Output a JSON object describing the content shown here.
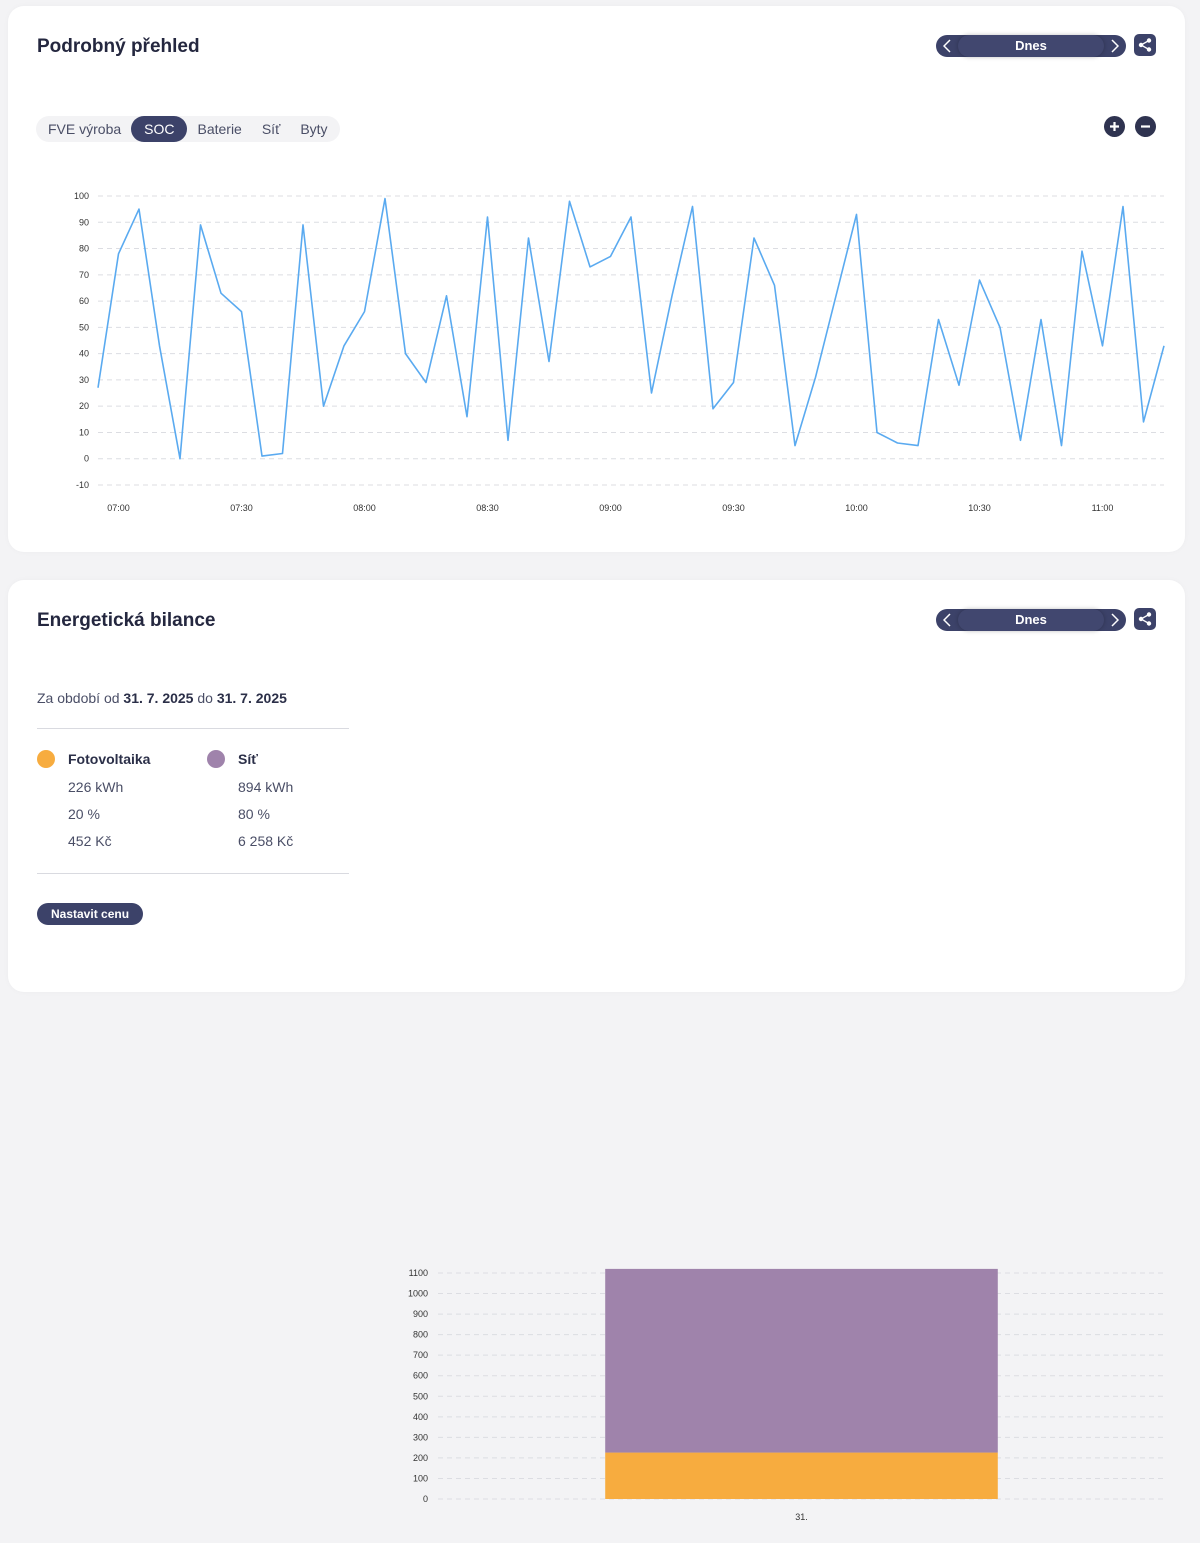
{
  "detail": {
    "title": "Podrobný přehled",
    "date_label": "Dnes",
    "tabs": [
      {
        "label": "FVE výroba",
        "active": false
      },
      {
        "label": "SOC",
        "active": true
      },
      {
        "label": "Baterie",
        "active": false
      },
      {
        "label": "Síť",
        "active": false
      },
      {
        "label": "Byty",
        "active": false
      }
    ],
    "zoom_in_icon": "plus-circle-icon",
    "zoom_out_icon": "minus-circle-icon",
    "share_icon": "share-icon"
  },
  "balance": {
    "title": "Energetická bilance",
    "date_label": "Dnes",
    "period_prefix": "Za období od",
    "period_from": "31. 7. 2025",
    "period_mid": "do",
    "period_to": "31. 7. 2025",
    "legend": [
      {
        "name": "Fotovoltaika",
        "color": "#f7ac3f",
        "energy": "226 kWh",
        "share": "20 %",
        "cost": "452 Kč"
      },
      {
        "name": "Síť",
        "color": "#9f83ab",
        "energy": "894 kWh",
        "share": "80 %",
        "cost": "6 258 Kč"
      }
    ],
    "set_price_label": "Nastavit cenu"
  },
  "colors": {
    "accent": "#3c4269",
    "line": "#5aaaf0",
    "pv": "#f7ac3f",
    "grid": "#9f83ab"
  },
  "chart_data": [
    {
      "type": "line",
      "ylim": [
        -10,
        100
      ],
      "yticks": [
        -10,
        0,
        10,
        20,
        30,
        40,
        50,
        60,
        70,
        80,
        90,
        100
      ],
      "xlim": [
        "06:55",
        "11:15"
      ],
      "xticks": [
        "07:00",
        "07:30",
        "08:00",
        "08:30",
        "09:00",
        "09:30",
        "10:00",
        "10:30",
        "11:00"
      ],
      "grid": true,
      "series": [
        {
          "x": [
            "06:55",
            "07:00",
            "07:05",
            "07:10",
            "07:15",
            "07:20",
            "07:25",
            "07:30",
            "07:35",
            "07:40",
            "07:45",
            "07:50",
            "07:55",
            "08:00",
            "08:05",
            "08:10",
            "08:15",
            "08:20",
            "08:25",
            "08:30",
            "08:35",
            "08:40",
            "08:45",
            "08:50",
            "08:55",
            "09:00",
            "09:05",
            "09:10",
            "09:15",
            "09:20",
            "09:25",
            "09:30",
            "09:35",
            "09:40",
            "09:45",
            "09:50",
            "09:55",
            "10:00",
            "10:05",
            "10:10",
            "10:15",
            "10:20",
            "10:25",
            "10:30",
            "10:35",
            "10:40",
            "10:45",
            "10:50",
            "10:55",
            "11:00",
            "11:05",
            "11:10",
            "11:15"
          ],
          "values": [
            27,
            78,
            95,
            43,
            0,
            89,
            63,
            56,
            1,
            2,
            89,
            20,
            43,
            56,
            99,
            40,
            29,
            62,
            16,
            92,
            7,
            84,
            37,
            98,
            73,
            77,
            92,
            25,
            62,
            96,
            19,
            29,
            84,
            66,
            5,
            31,
            62,
            93,
            10,
            6,
            5,
            53,
            28,
            68,
            50,
            7,
            53,
            5,
            79,
            43,
            96,
            14,
            43
          ]
        }
      ]
    },
    {
      "type": "bar",
      "stacked": true,
      "categories": [
        "31."
      ],
      "ylim": [
        0,
        1100
      ],
      "yticks": [
        0,
        100,
        200,
        300,
        400,
        500,
        600,
        700,
        800,
        900,
        1000,
        1100
      ],
      "grid": true,
      "series": [
        {
          "name": "Fotovoltaika",
          "values": [
            226
          ],
          "color": "#f7ac3f"
        },
        {
          "name": "Síť",
          "values": [
            894
          ],
          "color": "#9f83ab"
        }
      ]
    }
  ]
}
